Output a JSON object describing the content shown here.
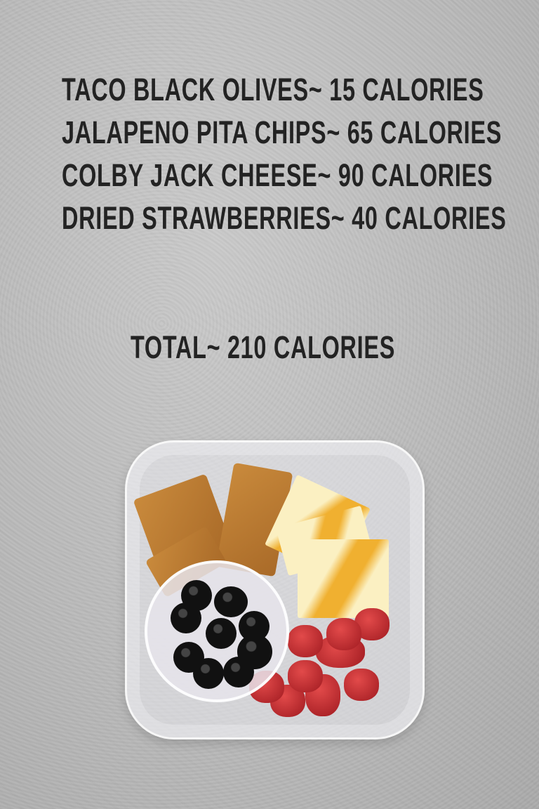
{
  "items": [
    {
      "text": "TACO BLACK OLIVES~ 15 CALORIES"
    },
    {
      "text": "JALAPENO PITA CHIPS~ 65 CALORIES"
    },
    {
      "text": "COLBY JACK CHEESE~ 90 CALORIES"
    },
    {
      "text": "DRIED STRAWBERRIES~ 40 CALORIES"
    }
  ],
  "total": "TOTAL~ 210 CALORIES"
}
